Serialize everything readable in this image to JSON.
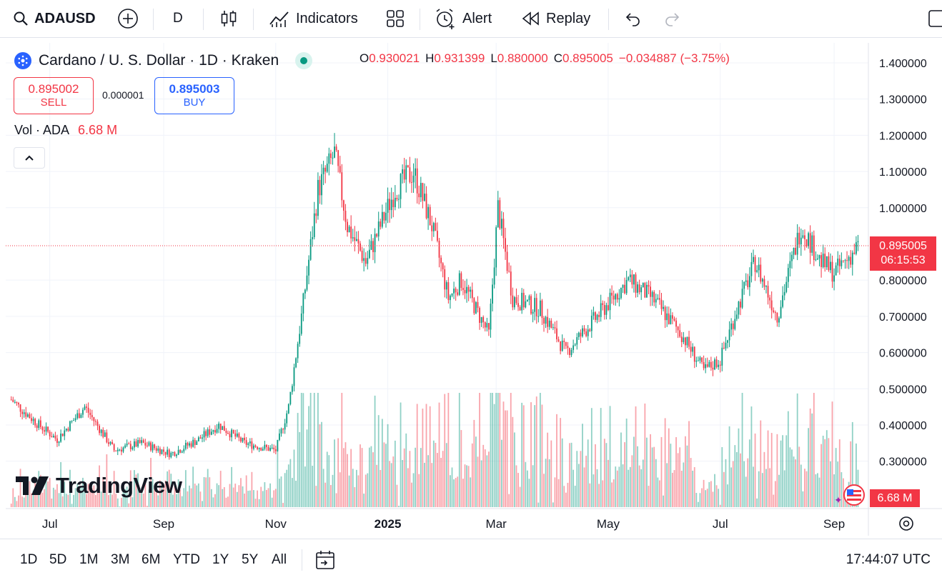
{
  "toolbar": {
    "symbol": "ADAUSD",
    "interval": "D",
    "indicators_label": "Indicators",
    "alert_label": "Alert",
    "replay_label": "Replay"
  },
  "legend": {
    "title": "Cardano / U. S. Dollar · 1D · Kraken",
    "open_label": "O",
    "open": "0.930021",
    "high_label": "H",
    "high": "0.931399",
    "low_label": "L",
    "low": "0.880000",
    "close_label": "C",
    "close": "0.895005",
    "change": "−0.034887 (−3.75%)"
  },
  "trade": {
    "sell_price": "0.895002",
    "sell_label": "SELL",
    "spread": "0.000001",
    "buy_price": "0.895003",
    "buy_label": "BUY"
  },
  "volume": {
    "label": "Vol · ADA",
    "value": "6.68 M"
  },
  "brand": "TradingView",
  "price_axis": [
    "1.400000",
    "1.300000",
    "1.200000",
    "1.100000",
    "1.000000",
    "0.800000",
    "0.700000",
    "0.600000",
    "0.500000",
    "0.400000",
    "0.300000"
  ],
  "current_price": "0.895005",
  "countdown": "06:15:53",
  "volume_tag": "6.68 M",
  "time_axis": [
    "Jul",
    "Sep",
    "Nov",
    "2025",
    "Mar",
    "May",
    "Jul",
    "Sep"
  ],
  "ranges": [
    "1D",
    "5D",
    "1M",
    "3M",
    "6M",
    "YTD",
    "1Y",
    "5Y",
    "All"
  ],
  "clock": "17:44:07 UTC",
  "colors": {
    "up": "#089981",
    "down": "#f23645",
    "accent": "#2962ff"
  },
  "chart_data": {
    "type": "candlestick",
    "ylim": [
      0.27,
      1.43
    ],
    "price_keypoints": [
      [
        "2024-06-10",
        0.47
      ],
      [
        "2024-06-25",
        0.4
      ],
      [
        "2024-07-05",
        0.36
      ],
      [
        "2024-07-20",
        0.45
      ],
      [
        "2024-08-05",
        0.33
      ],
      [
        "2024-08-20",
        0.35
      ],
      [
        "2024-09-05",
        0.32
      ],
      [
        "2024-09-20",
        0.36
      ],
      [
        "2024-10-01",
        0.4
      ],
      [
        "2024-10-15",
        0.35
      ],
      [
        "2024-11-01",
        0.33
      ],
      [
        "2024-11-08",
        0.45
      ],
      [
        "2024-11-15",
        0.7
      ],
      [
        "2024-11-24",
        1.05
      ],
      [
        "2024-12-03",
        1.15
      ],
      [
        "2024-12-10",
        0.95
      ],
      [
        "2024-12-20",
        0.85
      ],
      [
        "2025-01-05",
        1.05
      ],
      [
        "2025-01-15",
        1.1
      ],
      [
        "2025-01-25",
        0.95
      ],
      [
        "2025-02-03",
        0.75
      ],
      [
        "2025-02-10",
        0.8
      ],
      [
        "2025-02-25",
        0.65
      ],
      [
        "2025-03-02",
        1.0
      ],
      [
        "2025-03-10",
        0.75
      ],
      [
        "2025-03-25",
        0.72
      ],
      [
        "2025-04-08",
        0.6
      ],
      [
        "2025-04-25",
        0.7
      ],
      [
        "2025-05-12",
        0.8
      ],
      [
        "2025-05-25",
        0.75
      ],
      [
        "2025-06-10",
        0.65
      ],
      [
        "2025-06-22",
        0.55
      ],
      [
        "2025-07-01",
        0.58
      ],
      [
        "2025-07-10",
        0.72
      ],
      [
        "2025-07-20",
        0.85
      ],
      [
        "2025-08-01",
        0.7
      ],
      [
        "2025-08-14",
        0.95
      ],
      [
        "2025-08-25",
        0.85
      ],
      [
        "2025-09-01",
        0.82
      ],
      [
        "2025-09-12",
        0.88
      ],
      [
        "2025-09-14",
        0.895
      ]
    ]
  }
}
